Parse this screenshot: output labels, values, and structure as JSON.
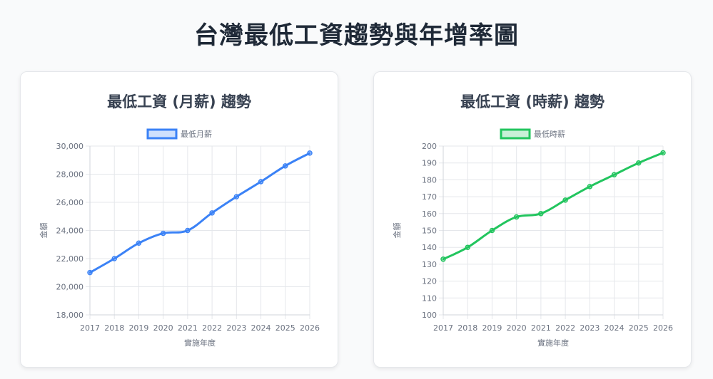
{
  "page": {
    "title": "台灣最低工資趨勢與年增率圖"
  },
  "colors": {
    "monthly": "#3b82f6",
    "hourly": "#22c55e",
    "grid": "#e5e7eb",
    "tick": "#6b7280"
  },
  "chart_data": [
    {
      "type": "line",
      "title": "最低工資 (月薪) 趨勢",
      "legend": "top",
      "grid": true,
      "xlabel": "實施年度",
      "ylabel": "金額",
      "x": [
        "2017",
        "2018",
        "2019",
        "2020",
        "2021",
        "2022",
        "2023",
        "2024",
        "2025",
        "2026"
      ],
      "ylim": [
        18000,
        30000
      ],
      "yticks": [
        "30,000",
        "28,000",
        "26,000",
        "24,000",
        "22,000",
        "20,000",
        "18,000"
      ],
      "series": [
        {
          "name": "最低月薪",
          "values": [
            21009,
            22000,
            23100,
            23800,
            24000,
            25250,
            26400,
            27470,
            28590,
            29500
          ]
        }
      ]
    },
    {
      "type": "line",
      "title": "最低工資 (時薪) 趨勢",
      "legend": "top",
      "grid": true,
      "xlabel": "實施年度",
      "ylabel": "金額",
      "x": [
        "2017",
        "2018",
        "2019",
        "2020",
        "2021",
        "2022",
        "2023",
        "2024",
        "2025",
        "2026"
      ],
      "ylim": [
        100,
        200
      ],
      "yticks": [
        "200",
        "190",
        "180",
        "170",
        "160",
        "150",
        "140",
        "130",
        "120",
        "110",
        "100"
      ],
      "series": [
        {
          "name": "最低時薪",
          "values": [
            133,
            140,
            150,
            158,
            160,
            168,
            176,
            183,
            190,
            196
          ]
        }
      ]
    }
  ]
}
